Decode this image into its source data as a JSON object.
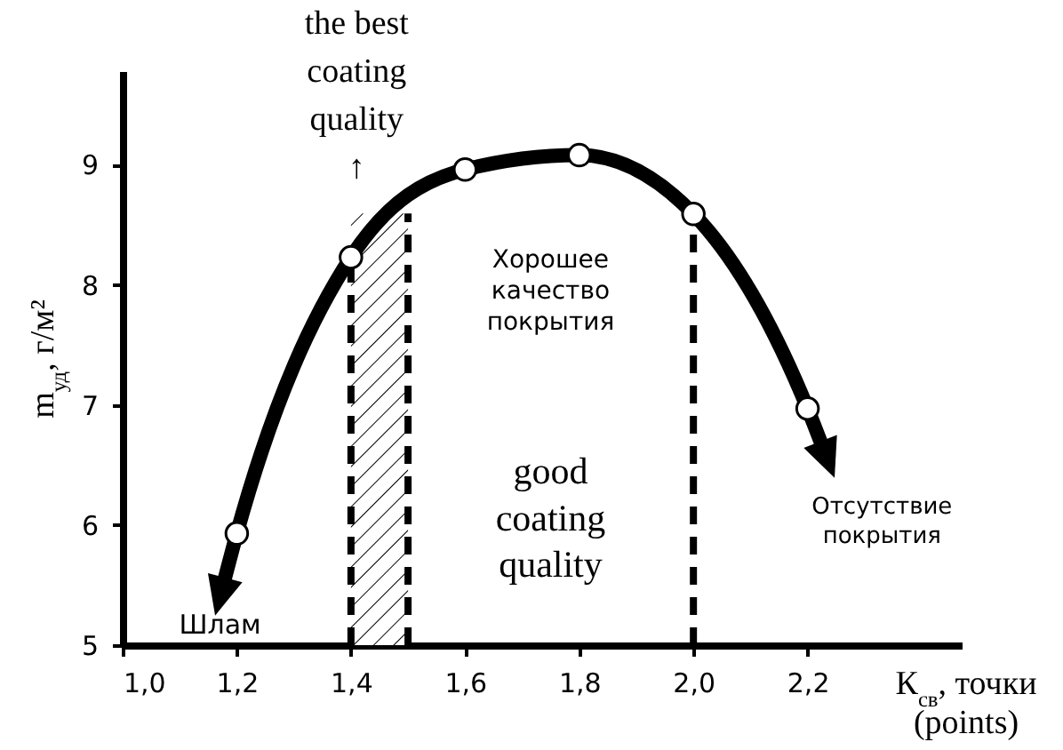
{
  "chart_data": {
    "type": "line",
    "xlabel": "К$_{св}$, точки\n(points)",
    "ylabel": "m$_{уд}$, г/м²",
    "xlim": [
      1.0,
      2.47
    ],
    "ylim": [
      5,
      9.78
    ],
    "xticks": [
      {
        "value": 1.0,
        "label": "1,0"
      },
      {
        "value": 1.2,
        "label": "1,2"
      },
      {
        "value": 1.4,
        "label": "1,4"
      },
      {
        "value": 1.6,
        "label": "1,6"
      },
      {
        "value": 1.8,
        "label": "1,8"
      },
      {
        "value": 2.0,
        "label": "2,0"
      },
      {
        "value": 2.2,
        "label": "2,2"
      }
    ],
    "yticks": [
      5,
      6,
      7,
      8,
      9
    ],
    "series": [
      {
        "color": "#000000",
        "marker": "none",
        "x": [
          1.17,
          1.2,
          1.4,
          1.6,
          1.8,
          2.0,
          2.2,
          2.236
        ],
        "values": [
          5.39,
          5.93,
          8.23,
          8.96,
          9.08,
          8.59,
          6.97,
          6.53
        ]
      },
      {
        "type": "scatter",
        "color": "#000000",
        "marker": "circle",
        "x": [
          1.2,
          1.4,
          1.6,
          1.8,
          2.0,
          2.2
        ],
        "values": [
          5.93,
          8.23,
          8.96,
          9.08,
          8.59,
          6.97
        ]
      }
    ],
    "ref_lines": [
      {
        "axis": "x",
        "value": 1.4,
        "line_style": "dashed"
      },
      {
        "axis": "x",
        "value": 1.5,
        "line_style": "dashed"
      },
      {
        "axis": "x",
        "value": 2.0,
        "line_style": "dashed"
      }
    ],
    "bands": [
      {
        "axis": "x",
        "from": 1.4,
        "to": 1.5,
        "label": "the best\ncoating\nquality\n↑"
      }
    ],
    "annotations": [
      "Хорошее\nкачество\nпокрытия",
      "good\ncoating\nquality",
      "Шлам",
      "Отсутствие\nпокрытия"
    ],
    "grid": false
  }
}
